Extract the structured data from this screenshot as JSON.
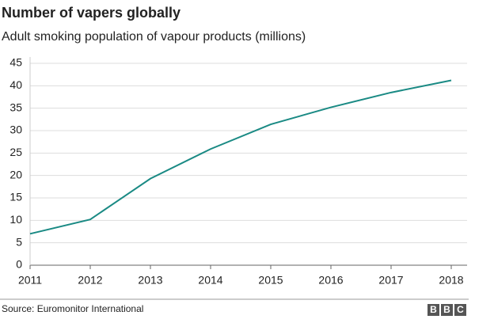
{
  "chart_data": {
    "type": "line",
    "title": "Number of vapers globally",
    "subtitle": "Adult smoking population of vapour products (millions)",
    "x": [
      2011,
      2012,
      2013,
      2014,
      2015,
      2016,
      2017,
      2018
    ],
    "values": [
      7.0,
      10.2,
      19.3,
      25.9,
      31.4,
      35.2,
      38.5,
      41.2
    ],
    "color": "#1a8a84",
    "xlim": [
      2011,
      2018
    ],
    "xticks": [
      2011,
      2012,
      2013,
      2014,
      2015,
      2016,
      2017,
      2018
    ],
    "ylim": [
      0,
      45
    ],
    "yticks": [
      0,
      5,
      10,
      15,
      20,
      25,
      30,
      35,
      40,
      45
    ],
    "grid": true,
    "source": "Source: Euromonitor International",
    "logo": [
      "B",
      "B",
      "C"
    ]
  }
}
